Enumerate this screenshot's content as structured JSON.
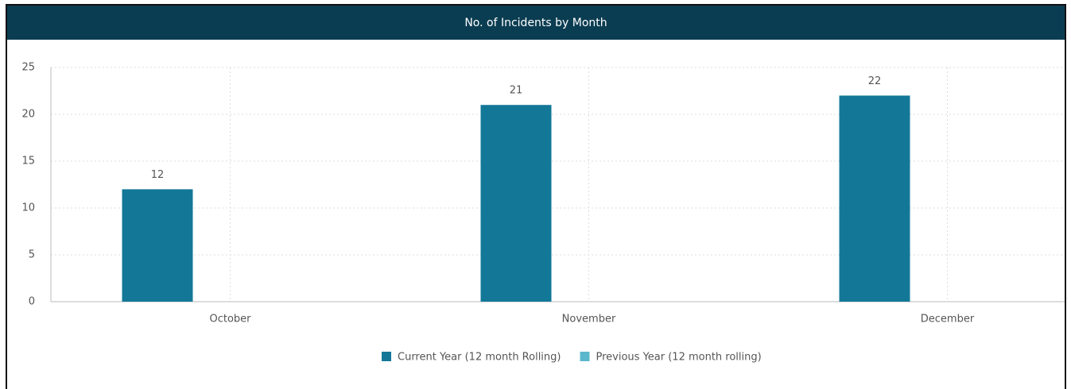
{
  "chart_data": {
    "type": "bar",
    "title": "No. of Incidents by Month",
    "categories": [
      "October",
      "November",
      "December"
    ],
    "series": [
      {
        "name": "Current Year (12 month Rolling)",
        "color": "#137898",
        "values": [
          12,
          21,
          22
        ]
      },
      {
        "name": "Previous Year (12 month rolling)",
        "color": "#5bb8cc",
        "values": [
          null,
          null,
          null
        ]
      }
    ],
    "ylim": [
      0,
      25
    ],
    "yticks": [
      0,
      5,
      10,
      15,
      20,
      25
    ],
    "grid": true,
    "legend": "bottom"
  }
}
